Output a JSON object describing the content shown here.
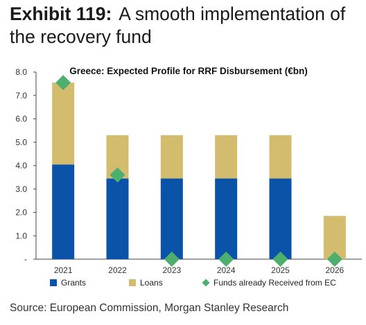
{
  "exhibit": {
    "label": "Exhibit 119:",
    "title": "A smooth implementation of the recovery fund"
  },
  "source": "Source: European Commission, Morgan Stanley Research",
  "chart_data": {
    "type": "bar",
    "stacked": true,
    "title": "Greece: Expected Profile for RRF Disbursement (€bn)",
    "categories": [
      "2021",
      "2022",
      "2023",
      "2024",
      "2025",
      "2026"
    ],
    "series": [
      {
        "name": "Grants",
        "kind": "bar",
        "color": "#0a53a8",
        "values": [
          4.05,
          3.45,
          3.45,
          3.45,
          3.45,
          0
        ]
      },
      {
        "name": "Loans",
        "kind": "bar",
        "color": "#d3bc6e",
        "values": [
          3.5,
          1.85,
          1.85,
          1.85,
          1.85,
          1.85
        ]
      },
      {
        "name": "Funds already Received from EC",
        "kind": "marker",
        "color": "#4caf6e",
        "values": [
          7.55,
          3.6,
          0,
          0,
          0,
          0
        ]
      }
    ],
    "ylim": [
      0,
      8
    ],
    "yticks": [
      0,
      1,
      2,
      3,
      4,
      5,
      6,
      7,
      8
    ],
    "ytick_labels": [
      "-",
      "1.0",
      "2.0",
      "3.0",
      "4.0",
      "5.0",
      "6.0",
      "7.0",
      "8.0"
    ],
    "xlabel": "",
    "ylabel": "",
    "grid": false,
    "legend_position": "bottom"
  }
}
